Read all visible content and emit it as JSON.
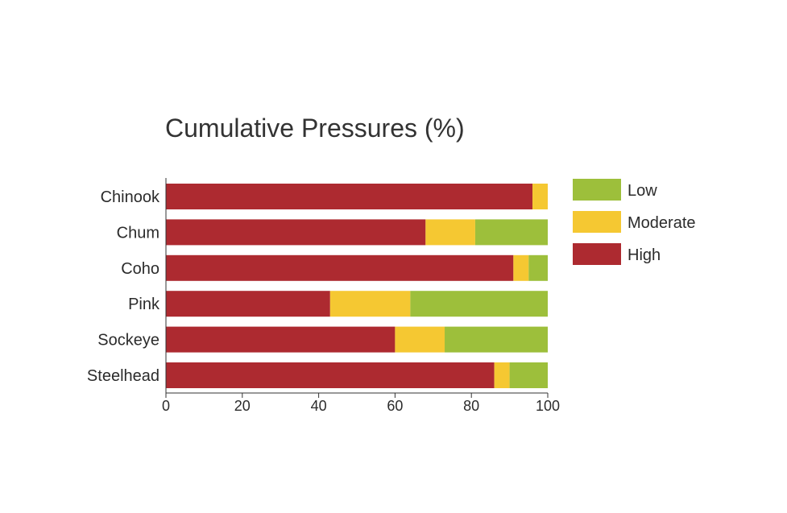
{
  "chart_data": {
    "type": "bar",
    "orientation": "horizontal",
    "stacked": true,
    "title": "Cumulative Pressures (%)",
    "xlabel": "",
    "ylabel": "",
    "categories": [
      "Chinook",
      "Chum",
      "Coho",
      "Pink",
      "Sockeye",
      "Steelhead"
    ],
    "series": [
      {
        "name": "High",
        "color": "#ad2a30",
        "values": [
          96,
          68,
          91,
          43,
          60,
          86
        ]
      },
      {
        "name": "Moderate",
        "color": "#f5c832",
        "values": [
          4,
          13,
          4,
          21,
          13,
          4
        ]
      },
      {
        "name": "Low",
        "color": "#9dbf3b",
        "values": [
          0,
          19,
          5,
          36,
          27,
          10
        ]
      }
    ],
    "legend_order": [
      "Low",
      "Moderate",
      "High"
    ],
    "legend_position": "right",
    "xlim": [
      0,
      100
    ],
    "xticks": [
      "0",
      "20",
      "40",
      "60",
      "80",
      "100"
    ],
    "grid": false
  }
}
